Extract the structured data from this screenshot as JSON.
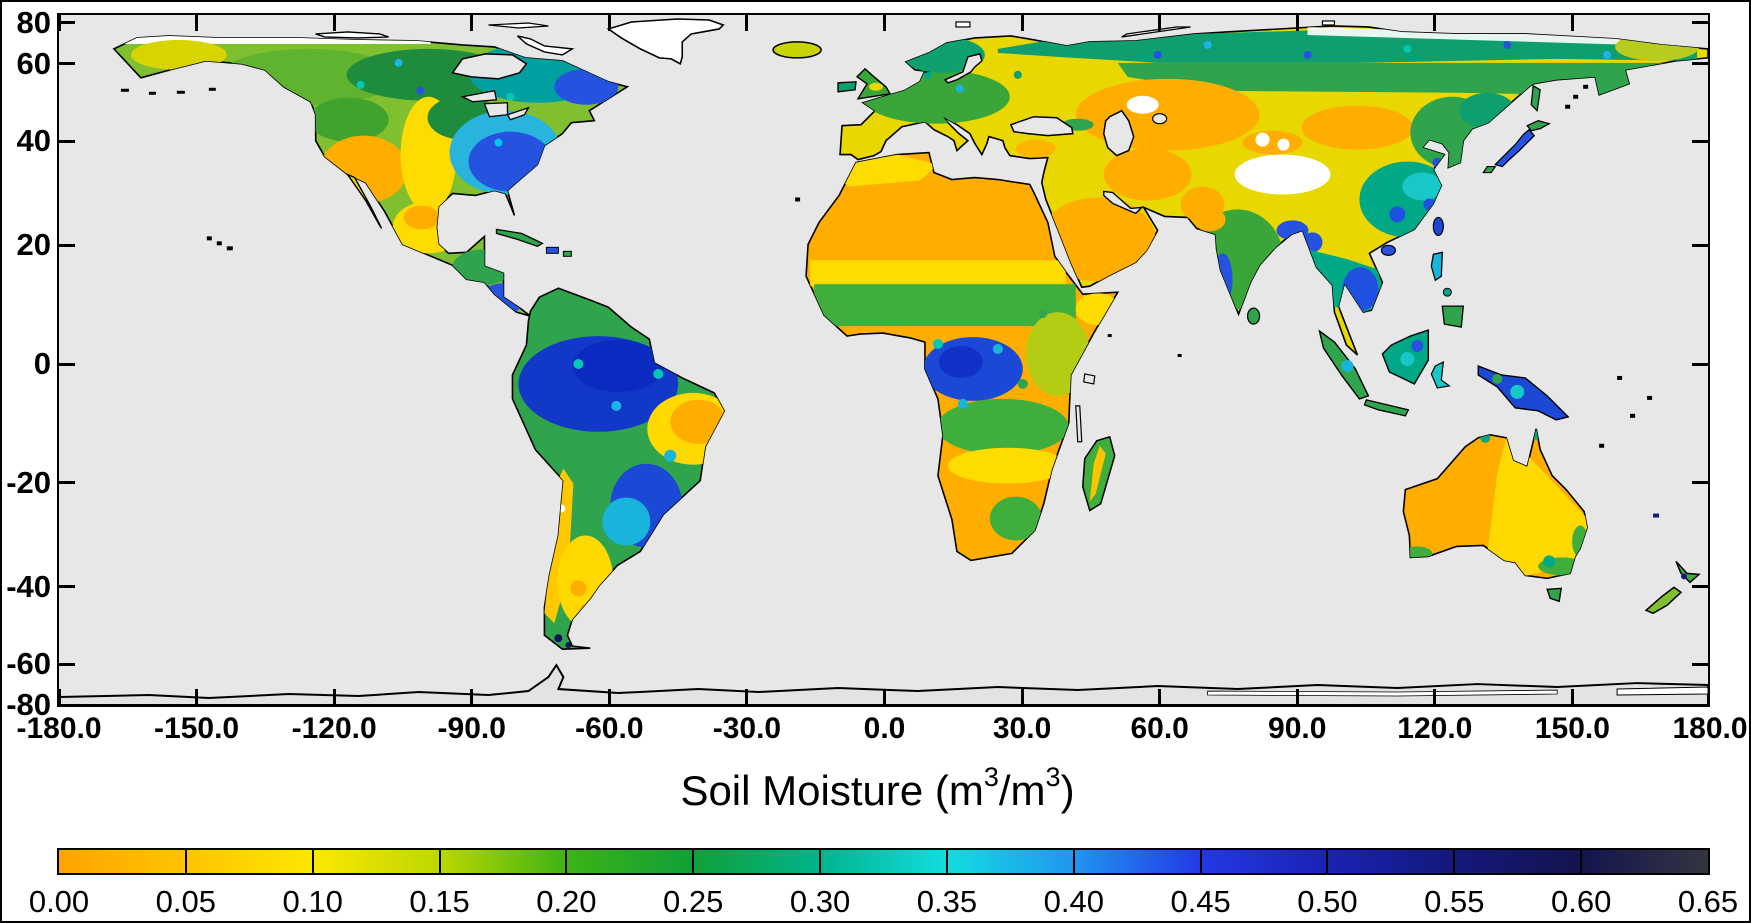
{
  "figure": {
    "title_parts": {
      "pre": "Soil Moisture (m",
      "sup1": "3",
      "mid": "/m",
      "sup2": "3",
      "post": ")"
    },
    "frame_color": "#000000",
    "background_color": "#ffffff"
  },
  "axes": {
    "y": {
      "labels": [
        "80",
        "60",
        "40",
        "20",
        "0",
        "-20",
        "-40",
        "-60",
        "-80"
      ],
      "values": [
        80,
        60,
        40,
        20,
        0,
        -20,
        -40,
        -60,
        -80
      ]
    },
    "x": {
      "labels": [
        "-180.0",
        "-150.0",
        "-120.0",
        "-90.0",
        "-60.0",
        "-30.0",
        "0.0",
        "30.0",
        "60.0",
        "90.0",
        "120.0",
        "150.0",
        "180.0"
      ],
      "values": [
        -180,
        -150,
        -120,
        -90,
        -60,
        -30,
        0,
        30,
        60,
        90,
        120,
        150,
        180
      ]
    }
  },
  "colorbar": {
    "stops": [
      {
        "value": "0.00",
        "color": "#FFA400"
      },
      {
        "value": "0.05",
        "color": "#FFC400"
      },
      {
        "value": "0.10",
        "color": "#FCE800"
      },
      {
        "value": "0.15",
        "color": "#BCD800"
      },
      {
        "value": "0.20",
        "color": "#3CB414"
      },
      {
        "value": "0.25",
        "color": "#10A038"
      },
      {
        "value": "0.30",
        "color": "#00B48C"
      },
      {
        "value": "0.35",
        "color": "#14DCE0"
      },
      {
        "value": "0.40",
        "color": "#2096F0"
      },
      {
        "value": "0.45",
        "color": "#2338E6"
      },
      {
        "value": "0.50",
        "color": "#1B22B4"
      },
      {
        "value": "0.55",
        "color": "#14187A"
      },
      {
        "value": "0.60",
        "color": "#13144E"
      },
      {
        "value": "0.65",
        "color": "#34353F"
      }
    ]
  },
  "map": {
    "ocean_color": "#e7e7e7",
    "coastline_color": "#000000",
    "no_data_color": "#ffffff"
  },
  "chart_data": {
    "type": "heatmap",
    "title": "Soil Moisture (m3/m3)",
    "projection": "cylindrical equal-area (latitude spacing proportional to sin(lat))",
    "xlim": [
      -180,
      180
    ],
    "ylim": [
      -80,
      80
    ],
    "x_ticks": [
      -180,
      -150,
      -120,
      -90,
      -60,
      -30,
      0,
      30,
      60,
      90,
      120,
      150,
      180
    ],
    "y_ticks": [
      80,
      60,
      40,
      20,
      0,
      -20,
      -40,
      -60,
      -80
    ],
    "colorbar": {
      "label": "Soil Moisture (m3/m3)",
      "range": [
        0.0,
        0.65
      ],
      "tick_step": 0.05,
      "tick_values": [
        0.0,
        0.05,
        0.1,
        0.15,
        0.2,
        0.25,
        0.3,
        0.35,
        0.4,
        0.45,
        0.5,
        0.55,
        0.6,
        0.65
      ],
      "colors": [
        "#FFA400",
        "#FFC400",
        "#FCE800",
        "#BCD800",
        "#3CB414",
        "#10A038",
        "#00B48C",
        "#14DCE0",
        "#2096F0",
        "#2338E6",
        "#1B22B4",
        "#14187A",
        "#13144E",
        "#34353F"
      ]
    },
    "regions_estimated": [
      {
        "region": "Sahara, Arabian Peninsula, central Australia, Gobi, Kalahari, Atacama",
        "soil_moisture": "0.00-0.05"
      },
      {
        "region": "Great Plains, Mexico, Sahel, Ukraine steppe, Kazakhstan, Argentina, NE Brazil",
        "soil_moisture": "0.07-0.15"
      },
      {
        "region": "Europe, boreal Canada and Siberia, East Africa, southern Africa belt",
        "soil_moisture": "0.15-0.30"
      },
      {
        "region": "Eastern USA, Labrador, SE Asia, southern China, Indonesia, New Guinea",
        "soil_moisture": "0.30-0.50"
      },
      {
        "region": "Amazon basin, Congo basin",
        "soil_moisture": "0.40-0.60"
      },
      {
        "region": "Greenland, Tibetan Plateau, high Arctic islands, Tarim RFI patches",
        "soil_moisture": "no data (white)"
      }
    ]
  }
}
